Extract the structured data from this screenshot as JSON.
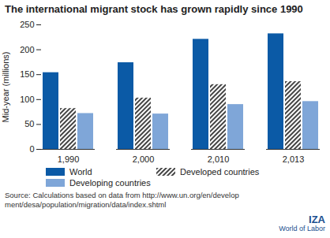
{
  "chart_data": {
    "type": "bar",
    "title": "The international migrant stock has grown rapidly since 1990",
    "y_label": "Mid-year (millions)",
    "categories": [
      1990,
      2000,
      2010,
      2013
    ],
    "series": [
      {
        "name": "World",
        "color": "#0b5aa6",
        "values": [
          154,
          174,
          221,
          232
        ]
      },
      {
        "name": "Developed countries",
        "color": "#444444",
        "values": [
          82,
          103,
          130,
          136
        ]
      },
      {
        "name": "Developing countries",
        "color": "#7fa6d8",
        "values": [
          72,
          71,
          90,
          96
        ]
      }
    ],
    "ylim": [
      0,
      250
    ],
    "yticks": [
      0,
      50,
      100,
      150,
      200,
      250
    ],
    "grid": false,
    "legend": "bottom",
    "source": "Source: Calculations based on data from http://www.un.org/en/development/desa/population/migration/data/index.shtml",
    "branding": [
      "IZA",
      "World of Labor"
    ]
  }
}
